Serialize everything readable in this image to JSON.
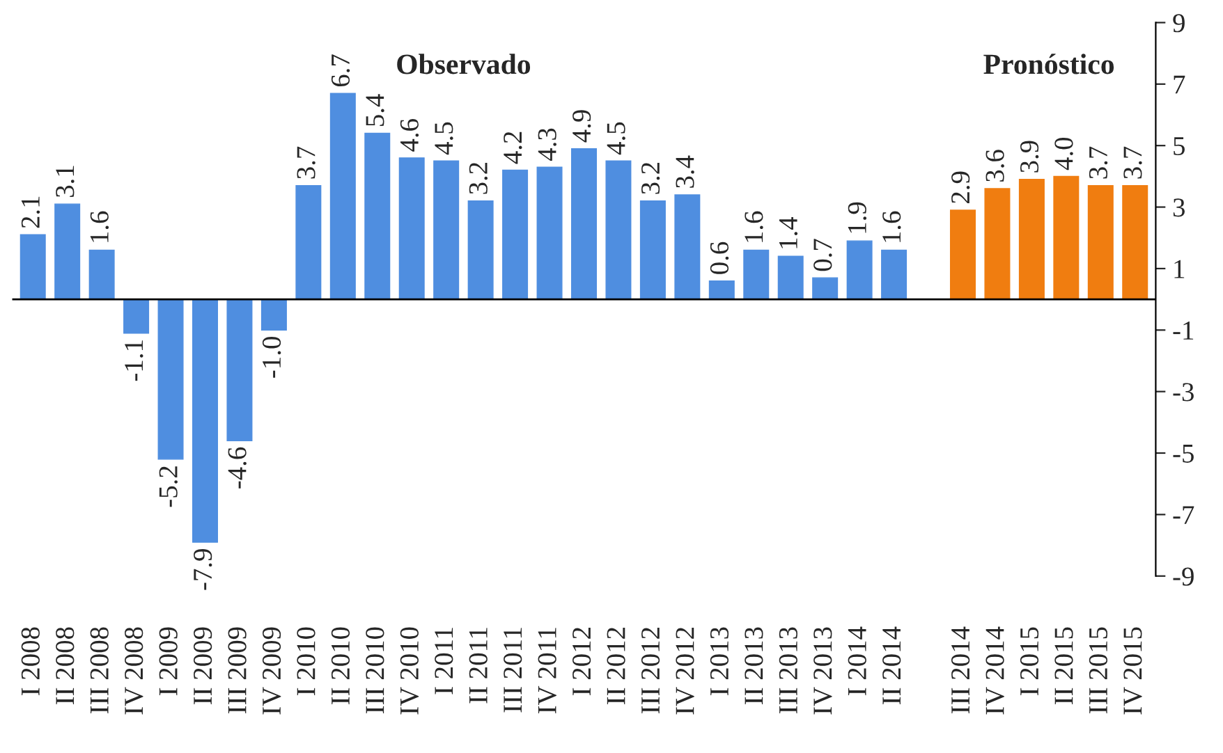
{
  "chart_data": {
    "type": "bar",
    "categories": [
      "I 2008",
      "II 2008",
      "III 2008",
      "IV 2008",
      "I 2009",
      "II 2009",
      "III 2009",
      "IV 2009",
      "I 2010",
      "II 2010",
      "III 2010",
      "IV 2010",
      "I 2011",
      "II 2011",
      "III 2011",
      "IV 2011",
      "I 2012",
      "II 2012",
      "III 2012",
      "IV 2012",
      "I 2013",
      "II 2013",
      "III 2013",
      "IV 2013",
      "I 2014",
      "II 2014",
      null,
      "III 2014",
      "IV 2014",
      "I 2015",
      "II 2015",
      "III 2015",
      "IV 2015"
    ],
    "series": [
      {
        "color": "#4f8ee0",
        "values": [
          2.1,
          3.1,
          1.6,
          -1.1,
          -5.2,
          -7.9,
          -4.6,
          -1.0,
          3.7,
          6.7,
          5.4,
          4.6,
          4.5,
          3.2,
          4.2,
          4.3,
          4.9,
          4.5,
          3.2,
          3.4,
          0.6,
          1.6,
          1.4,
          0.7,
          1.9,
          1.6,
          null,
          null,
          null,
          null,
          null,
          null,
          null
        ],
        "value_labels": [
          "2.1",
          "3.1",
          "1.6",
          "-1.1",
          "-5.2",
          "-7.9",
          "-4.6",
          "-1.0",
          "3.7",
          "6.7",
          "5.4",
          "4.6",
          "4.5",
          "3.2",
          "4.2",
          "4.3",
          "4.9",
          "4.5",
          "3.2",
          "3.4",
          "0.6",
          "1.6",
          "1.4",
          "0.7",
          "1.9",
          "1.6",
          null,
          null,
          null,
          null,
          null,
          null,
          null
        ]
      },
      {
        "color": "#f07d10",
        "values": [
          null,
          null,
          null,
          null,
          null,
          null,
          null,
          null,
          null,
          null,
          null,
          null,
          null,
          null,
          null,
          null,
          null,
          null,
          null,
          null,
          null,
          null,
          null,
          null,
          null,
          null,
          null,
          2.9,
          3.6,
          3.9,
          4.0,
          3.7,
          3.7
        ],
        "value_labels": [
          null,
          null,
          null,
          null,
          null,
          null,
          null,
          null,
          null,
          null,
          null,
          null,
          null,
          null,
          null,
          null,
          null,
          null,
          null,
          null,
          null,
          null,
          null,
          null,
          null,
          null,
          null,
          "2.9",
          "3.6",
          "3.9",
          "4.0",
          "3.7",
          "3.7"
        ]
      }
    ],
    "annotations": [
      "Observado",
      "Pronóstico"
    ],
    "ylim": [
      -9,
      9
    ],
    "yticks": [
      -9,
      -7,
      -5,
      -3,
      -1,
      1,
      3,
      5,
      7,
      9
    ],
    "grid": false,
    "legend": false
  }
}
